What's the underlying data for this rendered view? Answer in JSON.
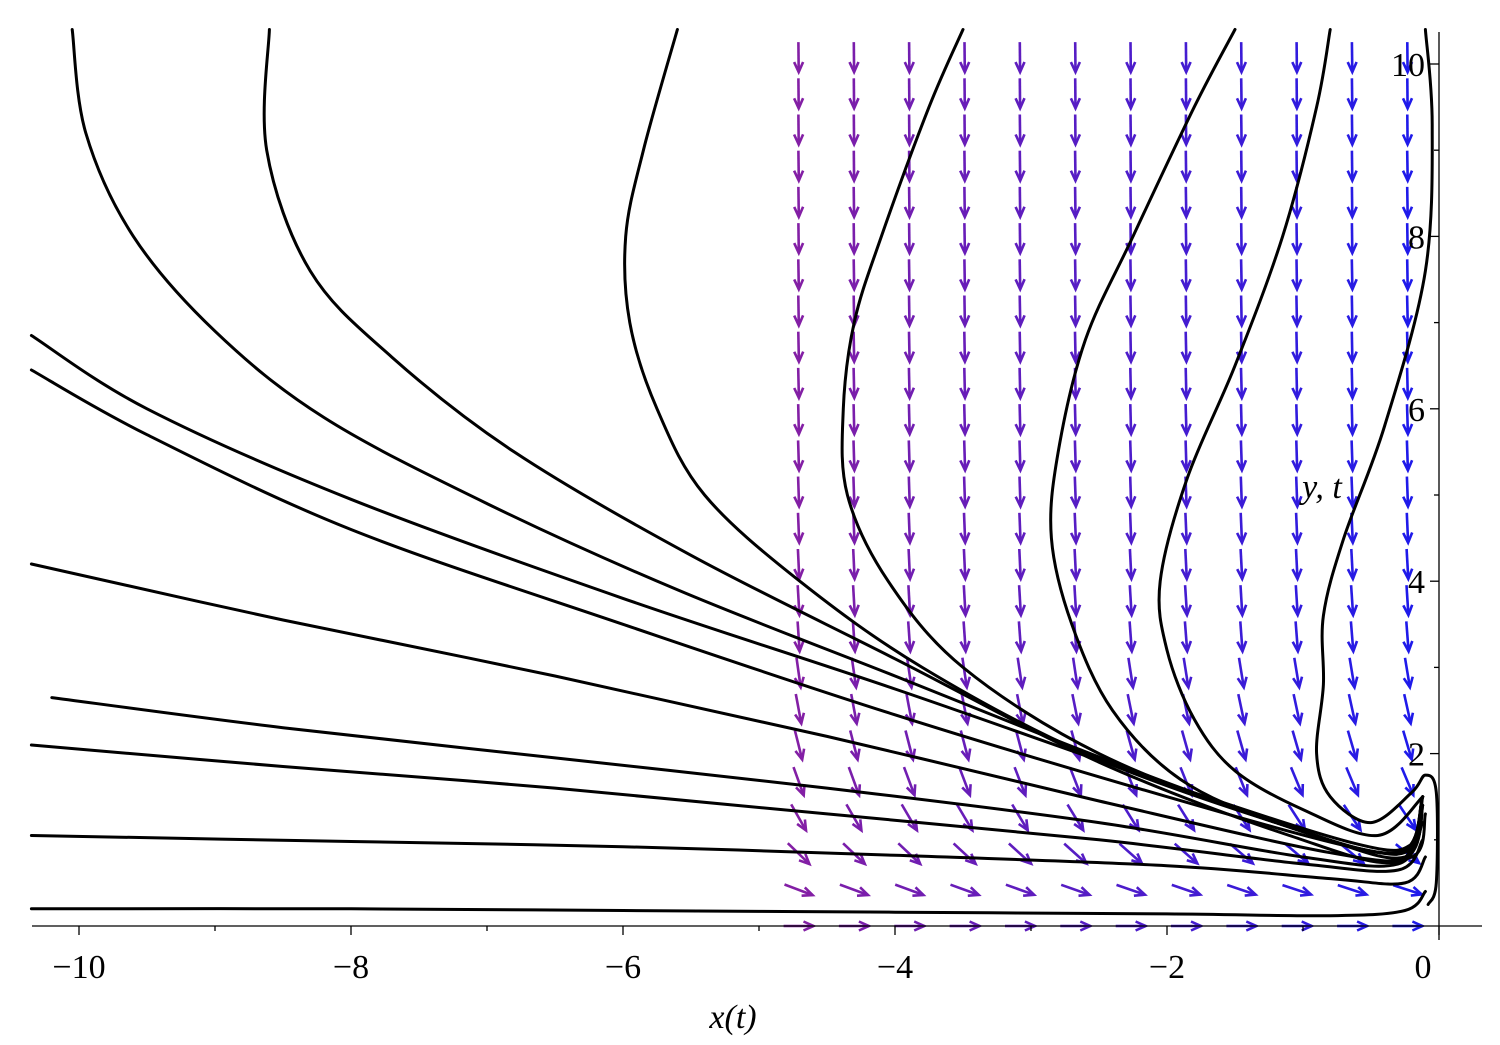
{
  "chart_data": {
    "type": "phase-portrait",
    "xlabel": "x(t)",
    "ylabel": "y, t",
    "xlim": [
      -10.4,
      0.3
    ],
    "ylim": [
      -0.05,
      10.4
    ],
    "x_ticks": [
      -10,
      -8,
      -6,
      -4,
      -2,
      0
    ],
    "y_ticks": [
      2,
      4,
      6,
      8,
      10
    ],
    "x_tick_labels": [
      "−10",
      "−8",
      "−6",
      "−4",
      "−2",
      "0"
    ],
    "y_tick_labels": [
      "2",
      "4",
      "6",
      "8",
      "10"
    ],
    "arrow_color_scale": {
      "far_left_top": "#ee1111",
      "mid": "#8a1fa0",
      "near_origin": "#1a1aee"
    },
    "curve_color": "#000000",
    "trajectories": [
      [
        [
          -10.05,
          10.4
        ],
        [
          -9.95,
          9.2
        ],
        [
          -9.6,
          8.0
        ],
        [
          -9.0,
          6.9
        ],
        [
          -8.2,
          5.9
        ],
        [
          -7.0,
          4.9
        ],
        [
          -5.6,
          3.9
        ],
        [
          -4.0,
          2.9
        ],
        [
          -2.4,
          1.9
        ],
        [
          -1.0,
          1.1
        ],
        [
          -0.25,
          0.8
        ],
        [
          -0.12,
          1.5
        ]
      ],
      [
        [
          -8.6,
          10.4
        ],
        [
          -8.62,
          9.0
        ],
        [
          -8.3,
          7.6
        ],
        [
          -7.7,
          6.6
        ],
        [
          -6.8,
          5.5
        ],
        [
          -5.5,
          4.3
        ],
        [
          -4.0,
          3.1
        ],
        [
          -2.5,
          1.9
        ],
        [
          -1.1,
          1.05
        ],
        [
          -0.3,
          0.75
        ],
        [
          -0.12,
          1.5
        ]
      ],
      [
        [
          -5.6,
          10.4
        ],
        [
          -5.85,
          9.0
        ],
        [
          -5.98,
          8.0
        ],
        [
          -5.95,
          7.0
        ],
        [
          -5.75,
          6.0
        ],
        [
          -5.4,
          5.0
        ],
        [
          -4.7,
          4.0
        ],
        [
          -3.8,
          3.0
        ],
        [
          -2.6,
          2.0
        ],
        [
          -1.2,
          1.2
        ],
        [
          -0.3,
          0.85
        ],
        [
          -0.12,
          1.5
        ]
      ],
      [
        [
          -3.5,
          10.4
        ],
        [
          -3.75,
          9.5
        ],
        [
          -4.1,
          8.0
        ],
        [
          -4.3,
          7.0
        ],
        [
          -4.38,
          6.0
        ],
        [
          -4.35,
          5.0
        ],
        [
          -4.05,
          4.0
        ],
        [
          -3.5,
          3.0
        ],
        [
          -2.5,
          2.0
        ],
        [
          -1.2,
          1.2
        ],
        [
          -0.3,
          0.85
        ],
        [
          -0.12,
          1.5
        ]
      ],
      [
        [
          -1.5,
          10.4
        ],
        [
          -1.8,
          9.5
        ],
        [
          -2.25,
          8.0
        ],
        [
          -2.6,
          6.8
        ],
        [
          -2.8,
          5.5
        ],
        [
          -2.85,
          4.5
        ],
        [
          -2.7,
          3.5
        ],
        [
          -2.4,
          2.5
        ],
        [
          -1.9,
          1.7
        ],
        [
          -1.2,
          1.2
        ],
        [
          -0.3,
          0.85
        ],
        [
          -0.12,
          1.5
        ]
      ],
      [
        [
          -0.8,
          10.4
        ],
        [
          -0.9,
          9.5
        ],
        [
          -1.15,
          8.0
        ],
        [
          -1.5,
          6.5
        ],
        [
          -1.85,
          5.2
        ],
        [
          -2.05,
          4.0
        ],
        [
          -2.0,
          3.2
        ],
        [
          -1.8,
          2.4
        ],
        [
          -1.5,
          1.8
        ],
        [
          -1.0,
          1.35
        ],
        [
          -0.45,
          1.05
        ],
        [
          -0.12,
          1.5
        ]
      ],
      [
        [
          -0.1,
          10.4
        ],
        [
          -0.05,
          9.3
        ],
        [
          -0.1,
          7.6
        ],
        [
          -0.4,
          5.8
        ],
        [
          -0.7,
          4.5
        ],
        [
          -0.85,
          3.6
        ],
        [
          -0.85,
          2.8
        ],
        [
          -0.9,
          2.0
        ],
        [
          -0.8,
          1.5
        ],
        [
          -0.5,
          1.2
        ],
        [
          -0.2,
          1.55
        ],
        [
          -0.1,
          1.75
        ],
        [
          -0.02,
          1.55
        ],
        [
          -0.02,
          0.5
        ],
        [
          -0.08,
          0.25
        ]
      ],
      [
        [
          -10.35,
          6.85
        ],
        [
          -9.5,
          6.0
        ],
        [
          -8.0,
          4.95
        ],
        [
          -6.0,
          3.8
        ],
        [
          -4.0,
          2.75
        ],
        [
          -2.0,
          1.65
        ],
        [
          -0.6,
          0.95
        ],
        [
          -0.2,
          0.95
        ],
        [
          -0.12,
          1.4
        ]
      ],
      [
        [
          -10.35,
          6.45
        ],
        [
          -9.5,
          5.7
        ],
        [
          -8.0,
          4.6
        ],
        [
          -6.0,
          3.5
        ],
        [
          -4.0,
          2.45
        ],
        [
          -2.0,
          1.5
        ],
        [
          -0.6,
          0.9
        ],
        [
          -0.2,
          0.9
        ],
        [
          -0.12,
          1.4
        ]
      ],
      [
        [
          -10.35,
          4.2
        ],
        [
          -8.5,
          3.55
        ],
        [
          -6.5,
          2.9
        ],
        [
          -4.5,
          2.2
        ],
        [
          -2.5,
          1.45
        ],
        [
          -0.8,
          0.85
        ],
        [
          -0.2,
          0.8
        ],
        [
          -0.1,
          1.3
        ]
      ],
      [
        [
          -10.2,
          2.65
        ],
        [
          -8.5,
          2.3
        ],
        [
          -6.5,
          1.95
        ],
        [
          -4.5,
          1.6
        ],
        [
          -2.5,
          1.2
        ],
        [
          -1.0,
          0.8
        ],
        [
          -0.3,
          0.72
        ],
        [
          -0.12,
          1.2
        ]
      ],
      [
        [
          -10.35,
          2.1
        ],
        [
          -8.5,
          1.85
        ],
        [
          -6.5,
          1.6
        ],
        [
          -4.5,
          1.3
        ],
        [
          -2.5,
          1.0
        ],
        [
          -1.0,
          0.72
        ],
        [
          -0.3,
          0.65
        ],
        [
          -0.12,
          1.0
        ]
      ],
      [
        [
          -10.35,
          1.05
        ],
        [
          -8.0,
          0.98
        ],
        [
          -6.0,
          0.92
        ],
        [
          -4.0,
          0.82
        ],
        [
          -2.0,
          0.7
        ],
        [
          -0.8,
          0.55
        ],
        [
          -0.25,
          0.5
        ],
        [
          -0.1,
          0.8
        ]
      ],
      [
        [
          -10.35,
          0.2
        ],
        [
          -8.0,
          0.2
        ],
        [
          -6.0,
          0.18
        ],
        [
          -4.0,
          0.16
        ],
        [
          -2.0,
          0.14
        ],
        [
          -0.8,
          0.12
        ],
        [
          -0.25,
          0.18
        ],
        [
          -0.1,
          0.4
        ]
      ]
    ]
  }
}
